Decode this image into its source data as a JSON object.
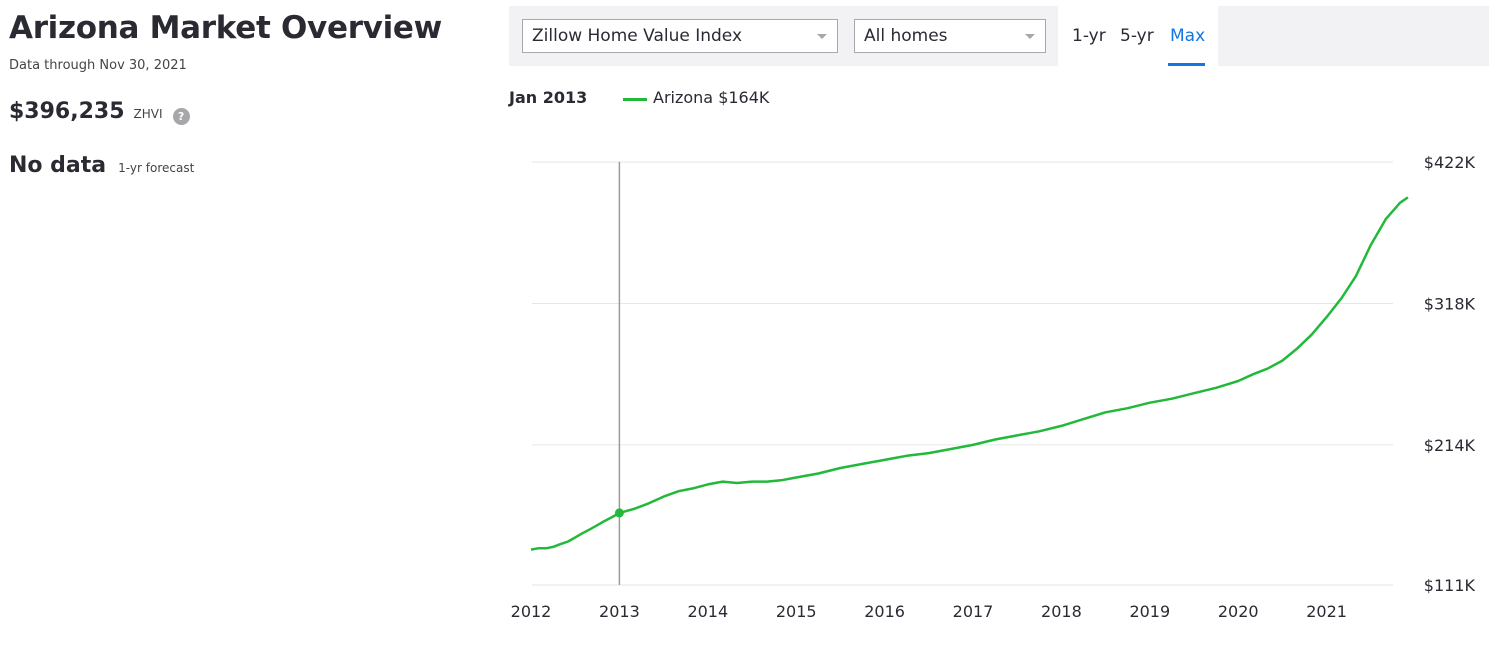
{
  "overview": {
    "title": "Arizona Market Overview",
    "data_through": "Data through Nov 30, 2021",
    "zhvi_value": "$396,235",
    "zhvi_label": "ZHVI",
    "help_icon": "help-icon",
    "forecast_value": "No data",
    "forecast_label": "1-yr forecast"
  },
  "controls": {
    "metric_select": "Zillow Home Value Index",
    "home_type_select": "All homes",
    "ranges": [
      "1-yr",
      "5-yr",
      "Max"
    ],
    "active_range": "Max"
  },
  "legend": {
    "date": "Jan 2013",
    "series_label": "Arizona $164K"
  },
  "colors": {
    "series": "#22b93b",
    "active_tab": "#1277e1",
    "grid": "#e6e6e6",
    "crosshair": "#9a9a9a"
  },
  "chart_data": {
    "type": "line",
    "x_tick_labels": [
      "2012",
      "2013",
      "2014",
      "2015",
      "2016",
      "2017",
      "2018",
      "2019",
      "2020",
      "2021"
    ],
    "y_tick_labels": [
      "$111K",
      "$214K",
      "$318K",
      "$422K"
    ],
    "y_ticks": [
      111,
      214,
      318,
      422
    ],
    "ylim": [
      111,
      422
    ],
    "xlim": [
      2012.0,
      2021.92
    ],
    "grid": true,
    "highlight": {
      "x": 2013.0,
      "y": 164
    },
    "series": [
      {
        "name": "Arizona",
        "x": [
          2012.0,
          2012.08,
          2012.17,
          2012.25,
          2012.33,
          2012.42,
          2012.5,
          2012.58,
          2012.67,
          2012.75,
          2012.83,
          2012.92,
          2013.0,
          2013.17,
          2013.33,
          2013.5,
          2013.67,
          2013.83,
          2014.0,
          2014.17,
          2014.33,
          2014.5,
          2014.67,
          2014.83,
          2015.0,
          2015.25,
          2015.5,
          2015.75,
          2016.0,
          2016.25,
          2016.5,
          2016.75,
          2017.0,
          2017.25,
          2017.5,
          2017.75,
          2018.0,
          2018.25,
          2018.5,
          2018.75,
          2019.0,
          2019.25,
          2019.5,
          2019.75,
          2020.0,
          2020.17,
          2020.33,
          2020.5,
          2020.67,
          2020.83,
          2021.0,
          2021.17,
          2021.33,
          2021.5,
          2021.67,
          2021.83,
          2021.92
        ],
        "values": [
          137,
          138,
          138,
          139,
          141,
          143,
          146,
          149,
          152,
          155,
          158,
          161,
          164,
          167,
          171,
          176,
          180,
          182,
          185,
          187,
          186,
          187,
          187,
          188,
          190,
          193,
          197,
          200,
          203,
          206,
          208,
          211,
          214,
          218,
          221,
          224,
          228,
          233,
          238,
          241,
          245,
          248,
          252,
          256,
          261,
          266,
          270,
          276,
          285,
          295,
          308,
          322,
          338,
          361,
          380,
          392,
          396
        ]
      }
    ]
  }
}
